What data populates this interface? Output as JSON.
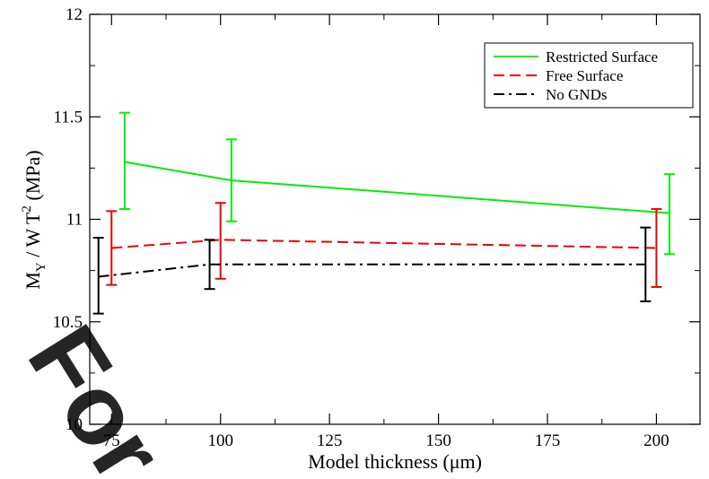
{
  "chart_data": {
    "type": "line",
    "xlabel": "Model thickness (μm)",
    "ylabel": {
      "main": "M",
      "sub1": "Y",
      "mid": " / W T",
      "sup": "2",
      "rest": " (MPa)"
    },
    "xlim": [
      70,
      210
    ],
    "ylim": [
      10,
      12
    ],
    "xticks": [
      75,
      100,
      125,
      150,
      175,
      200
    ],
    "yticks": [
      10,
      10.5,
      11,
      11.5,
      12
    ],
    "ytick_labels": [
      "10",
      "10.5",
      "11",
      "11.5",
      "12"
    ],
    "grid": false,
    "legend_position": "top-right",
    "series": [
      {
        "name": "Restricted Surface",
        "color": "#00ee00",
        "dash": "solid",
        "x": [
          78,
          102.5,
          203
        ],
        "y": [
          11.28,
          11.19,
          11.03
        ],
        "err_low": [
          11.05,
          10.99,
          10.83
        ],
        "err_high": [
          11.52,
          11.39,
          11.22
        ]
      },
      {
        "name": "Free Surface",
        "color": "#ee0000",
        "dash": "dashed",
        "x": [
          75,
          100,
          200
        ],
        "y": [
          10.86,
          10.9,
          10.86
        ],
        "err_low": [
          10.68,
          10.71,
          10.67
        ],
        "err_high": [
          11.04,
          11.08,
          11.05
        ]
      },
      {
        "name": "No GNDs",
        "color": "#000000",
        "dash": "dashdot",
        "x": [
          72,
          97.5,
          197.5
        ],
        "y": [
          10.72,
          10.78,
          10.78
        ],
        "err_low": [
          10.54,
          10.66,
          10.6
        ],
        "err_high": [
          10.91,
          10.9,
          10.96
        ]
      }
    ]
  },
  "watermark": {
    "text": "For",
    "color": "#00aaee"
  }
}
